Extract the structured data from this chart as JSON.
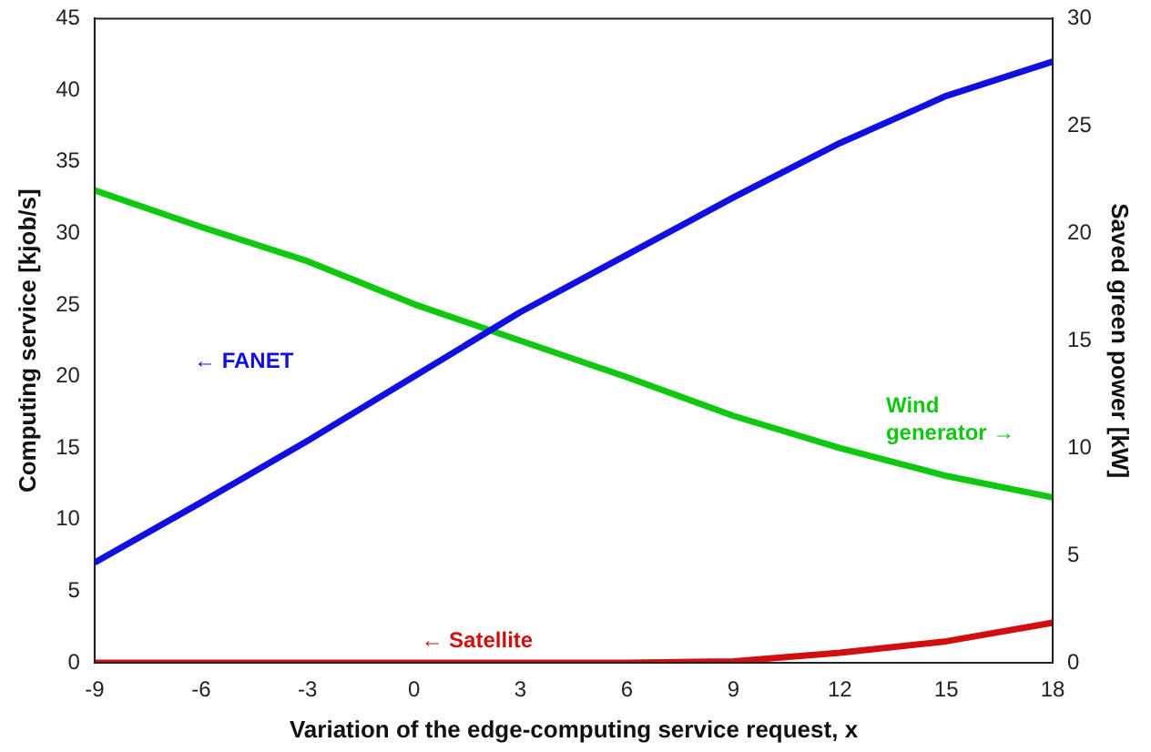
{
  "chart_data": {
    "type": "line",
    "xlabel": "Variation of the edge-computing service request, x",
    "ylabel": "Computing service [kjob/s]",
    "y2label": "Saved green power [kW]",
    "x": [
      -9,
      -6,
      -3,
      0,
      3,
      6,
      9,
      12,
      15,
      18
    ],
    "series": [
      {
        "name": "← FANET",
        "color": "#1010e0",
        "values": [
          7,
          11.2,
          15.5,
          20,
          24.5,
          28.5,
          32.5,
          36.3,
          39.6,
          42
        ]
      },
      {
        "name": "Wind generator →",
        "color": "#10c810",
        "axis": "y2",
        "values": [
          22,
          20.3,
          18.7,
          16.7,
          15,
          13.3,
          11.5,
          10,
          8.7,
          7.7
        ]
      },
      {
        "name": "← Satellite",
        "color": "#d01010",
        "values": [
          0,
          0,
          0,
          0,
          0,
          0,
          0.1,
          0.7,
          1.5,
          2.8
        ]
      }
    ],
    "xlim": [
      -9,
      18
    ],
    "xticks": [
      -9,
      -6,
      -3,
      0,
      3,
      6,
      9,
      12,
      15,
      18
    ],
    "ylim": [
      0,
      45
    ],
    "yticks": [
      0,
      5,
      10,
      15,
      20,
      25,
      30,
      35,
      40,
      45
    ],
    "y2lim": [
      0,
      30
    ],
    "y2ticks": [
      0,
      5,
      10,
      15,
      20,
      25,
      30
    ],
    "grid": false,
    "legend": false,
    "marker": "none",
    "line_style": "solid"
  }
}
